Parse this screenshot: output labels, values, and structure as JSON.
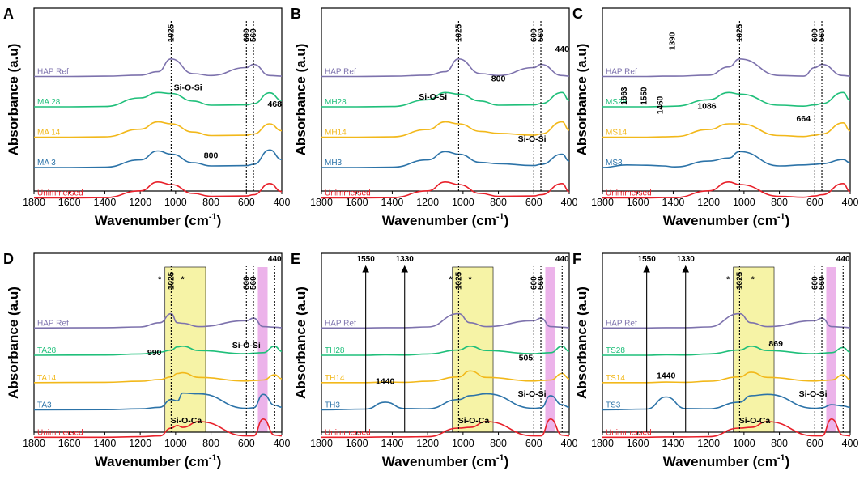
{
  "figure": {
    "colors": {
      "ref": "#7d72ad",
      "d28": "#1fbf7a",
      "d14": "#f2b81a",
      "d3": "#2c73a8",
      "un": "#e8202a",
      "yellow_band": "#f6f3a6",
      "pink_band": "#ecb3ea",
      "axis": "#000000"
    },
    "x_axis": {
      "label": "Wavenumber (cm",
      "label_sup": "-1",
      "label_end": ")",
      "ticks": [
        1800,
        1600,
        1400,
        1200,
        1000,
        800,
        600,
        400
      ],
      "range": [
        1800,
        400
      ]
    },
    "y_axis": {
      "label": "Absorbance (a.u)"
    },
    "panels": [
      {
        "letter": "A",
        "labels": [
          "HAP Ref",
          "MA 28",
          "MA 14",
          "MA 3",
          "Unimmersed"
        ],
        "peaks": [
          {
            "text": "1025",
            "x": 1025,
            "rot": true
          },
          {
            "text": "600",
            "x": 600,
            "rot": true
          },
          {
            "text": "560",
            "x": 560,
            "rot": true
          }
        ],
        "annotations": [
          {
            "text": "Si-O-Si",
            "wn": 930,
            "lvl": 0.55
          },
          {
            "text": "468",
            "wn": 440,
            "lvl": 0.46
          },
          {
            "text": "800",
            "wn": 800,
            "lvl": 0.18
          }
        ]
      },
      {
        "letter": "B",
        "labels": [
          "HAP Ref",
          "MH28",
          "MH14",
          "MH3",
          "Unimmersed"
        ],
        "peaks": [
          {
            "text": "1025",
            "x": 1025,
            "rot": true
          },
          {
            "text": "600",
            "x": 600,
            "rot": true
          },
          {
            "text": "560",
            "x": 560,
            "rot": true
          }
        ],
        "annotations": [
          {
            "text": "440",
            "wn": 440,
            "lvl": 0.76
          },
          {
            "text": "800",
            "wn": 800,
            "lvl": 0.6
          },
          {
            "text": "Si-O-Si",
            "wn": 1170,
            "lvl": 0.5
          },
          {
            "text": "Si-O-Si",
            "wn": 610,
            "lvl": 0.27
          }
        ]
      },
      {
        "letter": "C",
        "labels": [
          "HAP Ref",
          "MS28",
          "MS14",
          "MS3",
          "Unimmersed"
        ],
        "peaks": [
          {
            "text": "1025",
            "x": 1025,
            "rot": true
          },
          {
            "text": "600",
            "x": 600,
            "rot": true
          },
          {
            "text": "560",
            "x": 560,
            "rot": true
          }
        ],
        "annotations": [
          {
            "text": "1390",
            "wn": 1390,
            "lvl": 0.77,
            "rot": true
          },
          {
            "text": "1663",
            "wn": 1663,
            "lvl": 0.47,
            "rot": true
          },
          {
            "text": "1550",
            "wn": 1550,
            "lvl": 0.47,
            "rot": true
          },
          {
            "text": "1460",
            "wn": 1460,
            "lvl": 0.42,
            "rot": true
          },
          {
            "text": "1086",
            "wn": 1210,
            "lvl": 0.45
          },
          {
            "text": "664",
            "wn": 664,
            "lvl": 0.38
          }
        ]
      },
      {
        "letter": "D",
        "labels": [
          "HAP Ref",
          "TA28",
          "TA14",
          "TA3",
          "Unimmersed"
        ],
        "peaks": [
          {
            "text": "1025",
            "x": 1025,
            "rot": true
          },
          {
            "text": "600",
            "x": 600,
            "rot": true
          },
          {
            "text": "560",
            "x": 560,
            "rot": true
          },
          {
            "text": "440",
            "x": 440,
            "rot": false
          }
        ],
        "annotations": [
          {
            "text": "990",
            "wn": 1120,
            "lvl": 0.43
          },
          {
            "text": "Si-O-Si",
            "wn": 600,
            "lvl": 0.47
          },
          {
            "text": "Si-O-Ca",
            "wn": 940,
            "lvl": 0.05
          },
          {
            "text": "*",
            "wn": 1090,
            "lvl": 0.84
          },
          {
            "text": "*",
            "wn": 960,
            "lvl": 0.84
          }
        ]
      },
      {
        "letter": "E",
        "labels": [
          "HAP Ref",
          "TH28",
          "TH14",
          "TH3",
          "Unimmersed"
        ],
        "peaks": [
          {
            "text": "1550",
            "x": 1550,
            "rot": false
          },
          {
            "text": "1330",
            "x": 1330,
            "rot": false
          },
          {
            "text": "1025",
            "x": 1025,
            "rot": true
          },
          {
            "text": "600",
            "x": 600,
            "rot": true
          },
          {
            "text": "560",
            "x": 560,
            "rot": true
          },
          {
            "text": "440",
            "x": 440,
            "rot": false
          }
        ],
        "annotations": [
          {
            "text": "1440",
            "wn": 1440,
            "lvl": 0.27
          },
          {
            "text": "505",
            "wn": 645,
            "lvl": 0.4
          },
          {
            "text": "Si-O-Si",
            "wn": 610,
            "lvl": 0.2
          },
          {
            "text": "Si-O-Ca",
            "wn": 940,
            "lvl": 0.05
          },
          {
            "text": "*",
            "wn": 1070,
            "lvl": 0.84
          },
          {
            "text": "*",
            "wn": 960,
            "lvl": 0.84
          }
        ]
      },
      {
        "letter": "F",
        "labels": [
          "HAP Ref",
          "TS28",
          "TS14",
          "TS3",
          "Unimmersed"
        ],
        "peaks": [
          {
            "text": "1550",
            "x": 1550,
            "rot": false
          },
          {
            "text": "1330",
            "x": 1330,
            "rot": false
          },
          {
            "text": "1025",
            "x": 1025,
            "rot": true
          },
          {
            "text": "600",
            "x": 600,
            "rot": true
          },
          {
            "text": "560",
            "x": 560,
            "rot": true
          },
          {
            "text": "440",
            "x": 440,
            "rot": false
          }
        ],
        "annotations": [
          {
            "text": "1440",
            "wn": 1440,
            "lvl": 0.3
          },
          {
            "text": "869",
            "wn": 820,
            "lvl": 0.48
          },
          {
            "text": "Si-O-Si",
            "wn": 610,
            "lvl": 0.2
          },
          {
            "text": "Si-O-Ca",
            "wn": 940,
            "lvl": 0.05
          },
          {
            "text": "*",
            "wn": 1090,
            "lvl": 0.84
          },
          {
            "text": "*",
            "wn": 950,
            "lvl": 0.84
          }
        ]
      }
    ]
  },
  "chart_data": [
    {
      "type": "line",
      "panel": "A",
      "title": "",
      "xlabel": "Wavenumber (cm-1)",
      "ylabel": "Absorbance (a.u)",
      "xlim": [
        1800,
        400
      ],
      "x": [
        1800,
        1600,
        1400,
        1200,
        1100,
        1025,
        900,
        800,
        600,
        560,
        468,
        400
      ],
      "series": [
        {
          "name": "HAP Ref",
          "values": [
            0.0,
            0.0,
            0.01,
            0.04,
            0.15,
            0.55,
            0.09,
            0.03,
            0.28,
            0.38,
            0.03,
            0.01
          ]
        },
        {
          "name": "MA 28",
          "values": [
            0.0,
            0.0,
            0.01,
            0.28,
            0.45,
            0.42,
            0.18,
            0.05,
            0.06,
            0.1,
            0.44,
            0.2
          ]
        },
        {
          "name": "MA 14",
          "values": [
            0.0,
            0.0,
            0.01,
            0.25,
            0.48,
            0.42,
            0.16,
            0.05,
            0.06,
            0.1,
            0.42,
            0.2
          ]
        },
        {
          "name": "MA 3",
          "values": [
            0.0,
            0.0,
            0.01,
            0.24,
            0.52,
            0.42,
            0.15,
            0.05,
            0.06,
            0.1,
            0.55,
            0.25
          ]
        },
        {
          "name": "Unimmersed",
          "values": [
            0.0,
            0.0,
            0.01,
            0.22,
            0.5,
            0.42,
            0.14,
            0.05,
            0.06,
            0.1,
            0.45,
            0.2
          ]
        }
      ]
    },
    {
      "type": "line",
      "panel": "B",
      "title": "",
      "xlabel": "Wavenumber (cm-1)",
      "ylabel": "Absorbance (a.u)",
      "xlim": [
        1800,
        400
      ],
      "x": [
        1800,
        1600,
        1400,
        1200,
        1100,
        1025,
        900,
        800,
        600,
        560,
        440,
        400
      ],
      "series": [
        {
          "name": "HAP Ref",
          "values": [
            0.0,
            0.0,
            0.01,
            0.04,
            0.15,
            0.55,
            0.09,
            0.03,
            0.28,
            0.38,
            0.03,
            0.01
          ]
        },
        {
          "name": "MH28",
          "values": [
            0.0,
            0.0,
            0.01,
            0.22,
            0.45,
            0.4,
            0.18,
            0.05,
            0.06,
            0.1,
            0.45,
            0.2
          ]
        },
        {
          "name": "MH14",
          "values": [
            0.0,
            0.0,
            0.01,
            0.24,
            0.48,
            0.42,
            0.18,
            0.12,
            0.06,
            0.1,
            0.48,
            0.22
          ]
        },
        {
          "name": "MH3",
          "values": [
            0.0,
            0.0,
            0.01,
            0.24,
            0.5,
            0.42,
            0.16,
            0.12,
            0.06,
            0.1,
            0.42,
            0.2
          ]
        },
        {
          "name": "Unimmersed",
          "values": [
            0.0,
            0.0,
            0.01,
            0.22,
            0.5,
            0.42,
            0.14,
            0.05,
            0.06,
            0.1,
            0.45,
            0.2
          ]
        }
      ]
    },
    {
      "type": "line",
      "panel": "C",
      "title": "",
      "xlabel": "Wavenumber (cm-1)",
      "ylabel": "Absorbance (a.u)",
      "xlim": [
        1800,
        400
      ],
      "x": [
        1800,
        1663,
        1550,
        1460,
        1390,
        1200,
        1086,
        1025,
        800,
        664,
        600,
        560,
        440,
        400
      ],
      "series": [
        {
          "name": "HAP Ref",
          "values": [
            0.0,
            0.0,
            0.0,
            0.01,
            0.01,
            0.04,
            0.3,
            0.55,
            0.03,
            0.01,
            0.28,
            0.38,
            0.03,
            0.01
          ]
        },
        {
          "name": "MS28",
          "values": [
            0.0,
            0.0,
            0.0,
            0.01,
            0.02,
            0.22,
            0.45,
            0.4,
            0.05,
            0.02,
            0.06,
            0.1,
            0.45,
            0.2
          ]
        },
        {
          "name": "MS14",
          "values": [
            0.0,
            0.0,
            0.0,
            0.01,
            0.02,
            0.24,
            0.42,
            0.42,
            0.05,
            0.02,
            0.06,
            0.1,
            0.45,
            0.2
          ]
        },
        {
          "name": "MS3",
          "values": [
            0.0,
            0.08,
            0.07,
            0.05,
            0.02,
            0.2,
            0.3,
            0.5,
            0.05,
            0.08,
            0.1,
            0.12,
            0.25,
            0.15
          ]
        },
        {
          "name": "Unimmersed",
          "values": [
            0.0,
            0.0,
            0.0,
            0.01,
            0.01,
            0.22,
            0.5,
            0.42,
            0.05,
            0.02,
            0.06,
            0.1,
            0.45,
            0.2
          ]
        }
      ]
    },
    {
      "type": "line",
      "panel": "D",
      "title": "",
      "xlabel": "Wavenumber (cm-1)",
      "ylabel": "Absorbance (a.u)",
      "xlim": [
        1800,
        400
      ],
      "x": [
        1800,
        1400,
        1200,
        1090,
        1025,
        990,
        960,
        869,
        600,
        560,
        505,
        440,
        400
      ],
      "series": [
        {
          "name": "HAP Ref",
          "values": [
            0.0,
            0.01,
            0.04,
            0.2,
            0.55,
            0.2,
            0.18,
            0.05,
            0.28,
            0.38,
            0.05,
            0.03,
            0.01
          ]
        },
        {
          "name": "TA28",
          "values": [
            0.0,
            0.01,
            0.05,
            0.12,
            0.2,
            0.32,
            0.35,
            0.18,
            0.06,
            0.08,
            0.1,
            0.35,
            0.15
          ]
        },
        {
          "name": "TA14",
          "values": [
            0.0,
            0.01,
            0.05,
            0.12,
            0.22,
            0.35,
            0.38,
            0.2,
            0.06,
            0.08,
            0.1,
            0.3,
            0.15
          ]
        },
        {
          "name": "TA3",
          "values": [
            0.0,
            0.01,
            0.04,
            0.1,
            0.4,
            0.35,
            0.65,
            0.62,
            0.06,
            0.08,
            0.6,
            0.18,
            0.1
          ]
        },
        {
          "name": "Unimmersed",
          "values": [
            0.0,
            0.0,
            0.02,
            0.05,
            0.35,
            0.45,
            0.38,
            0.6,
            0.05,
            0.05,
            0.7,
            0.08,
            0.05
          ]
        }
      ]
    },
    {
      "type": "line",
      "panel": "E",
      "title": "",
      "xlabel": "Wavenumber (cm-1)",
      "ylabel": "Absorbance (a.u)",
      "xlim": [
        1800,
        400
      ],
      "x": [
        1800,
        1550,
        1440,
        1330,
        1200,
        1025,
        960,
        869,
        600,
        560,
        505,
        440,
        400
      ],
      "series": [
        {
          "name": "HAP Ref",
          "values": [
            0.0,
            0.0,
            0.01,
            0.01,
            0.04,
            0.55,
            0.2,
            0.05,
            0.28,
            0.38,
            0.05,
            0.03,
            0.01
          ]
        },
        {
          "name": "TH28",
          "values": [
            0.0,
            0.0,
            0.02,
            0.01,
            0.05,
            0.2,
            0.35,
            0.18,
            0.06,
            0.08,
            0.1,
            0.35,
            0.15
          ]
        },
        {
          "name": "TH14",
          "values": [
            0.0,
            0.0,
            0.02,
            0.01,
            0.05,
            0.22,
            0.45,
            0.2,
            0.06,
            0.08,
            0.1,
            0.35,
            0.15
          ]
        },
        {
          "name": "TH3",
          "values": [
            0.0,
            0.03,
            0.3,
            0.05,
            0.04,
            0.4,
            0.55,
            0.62,
            0.06,
            0.08,
            0.55,
            0.2,
            0.1
          ]
        },
        {
          "name": "Unimmersed",
          "values": [
            0.0,
            0.0,
            0.01,
            0.01,
            0.02,
            0.35,
            0.38,
            0.6,
            0.05,
            0.05,
            0.7,
            0.08,
            0.05
          ]
        }
      ]
    },
    {
      "type": "line",
      "panel": "F",
      "title": "",
      "xlabel": "Wavenumber (cm-1)",
      "ylabel": "Absorbance (a.u)",
      "xlim": [
        1800,
        400
      ],
      "x": [
        1800,
        1550,
        1440,
        1330,
        1200,
        1025,
        960,
        869,
        600,
        560,
        505,
        440,
        400
      ],
      "series": [
        {
          "name": "HAP Ref",
          "values": [
            0.0,
            0.0,
            0.01,
            0.01,
            0.04,
            0.55,
            0.2,
            0.05,
            0.28,
            0.38,
            0.05,
            0.03,
            0.01
          ]
        },
        {
          "name": "TS28",
          "values": [
            0.0,
            0.0,
            0.02,
            0.01,
            0.05,
            0.2,
            0.35,
            0.18,
            0.06,
            0.08,
            0.1,
            0.3,
            0.12
          ]
        },
        {
          "name": "TS14",
          "values": [
            0.0,
            0.0,
            0.02,
            0.01,
            0.05,
            0.22,
            0.4,
            0.2,
            0.06,
            0.08,
            0.1,
            0.3,
            0.12
          ]
        },
        {
          "name": "TS3",
          "values": [
            0.0,
            0.03,
            0.5,
            0.05,
            0.04,
            0.3,
            0.55,
            0.6,
            0.06,
            0.08,
            0.2,
            0.15,
            0.1
          ]
        },
        {
          "name": "Unimmersed",
          "values": [
            0.0,
            0.0,
            0.01,
            0.01,
            0.02,
            0.35,
            0.38,
            0.6,
            0.05,
            0.05,
            0.7,
            0.08,
            0.05
          ]
        }
      ]
    }
  ]
}
